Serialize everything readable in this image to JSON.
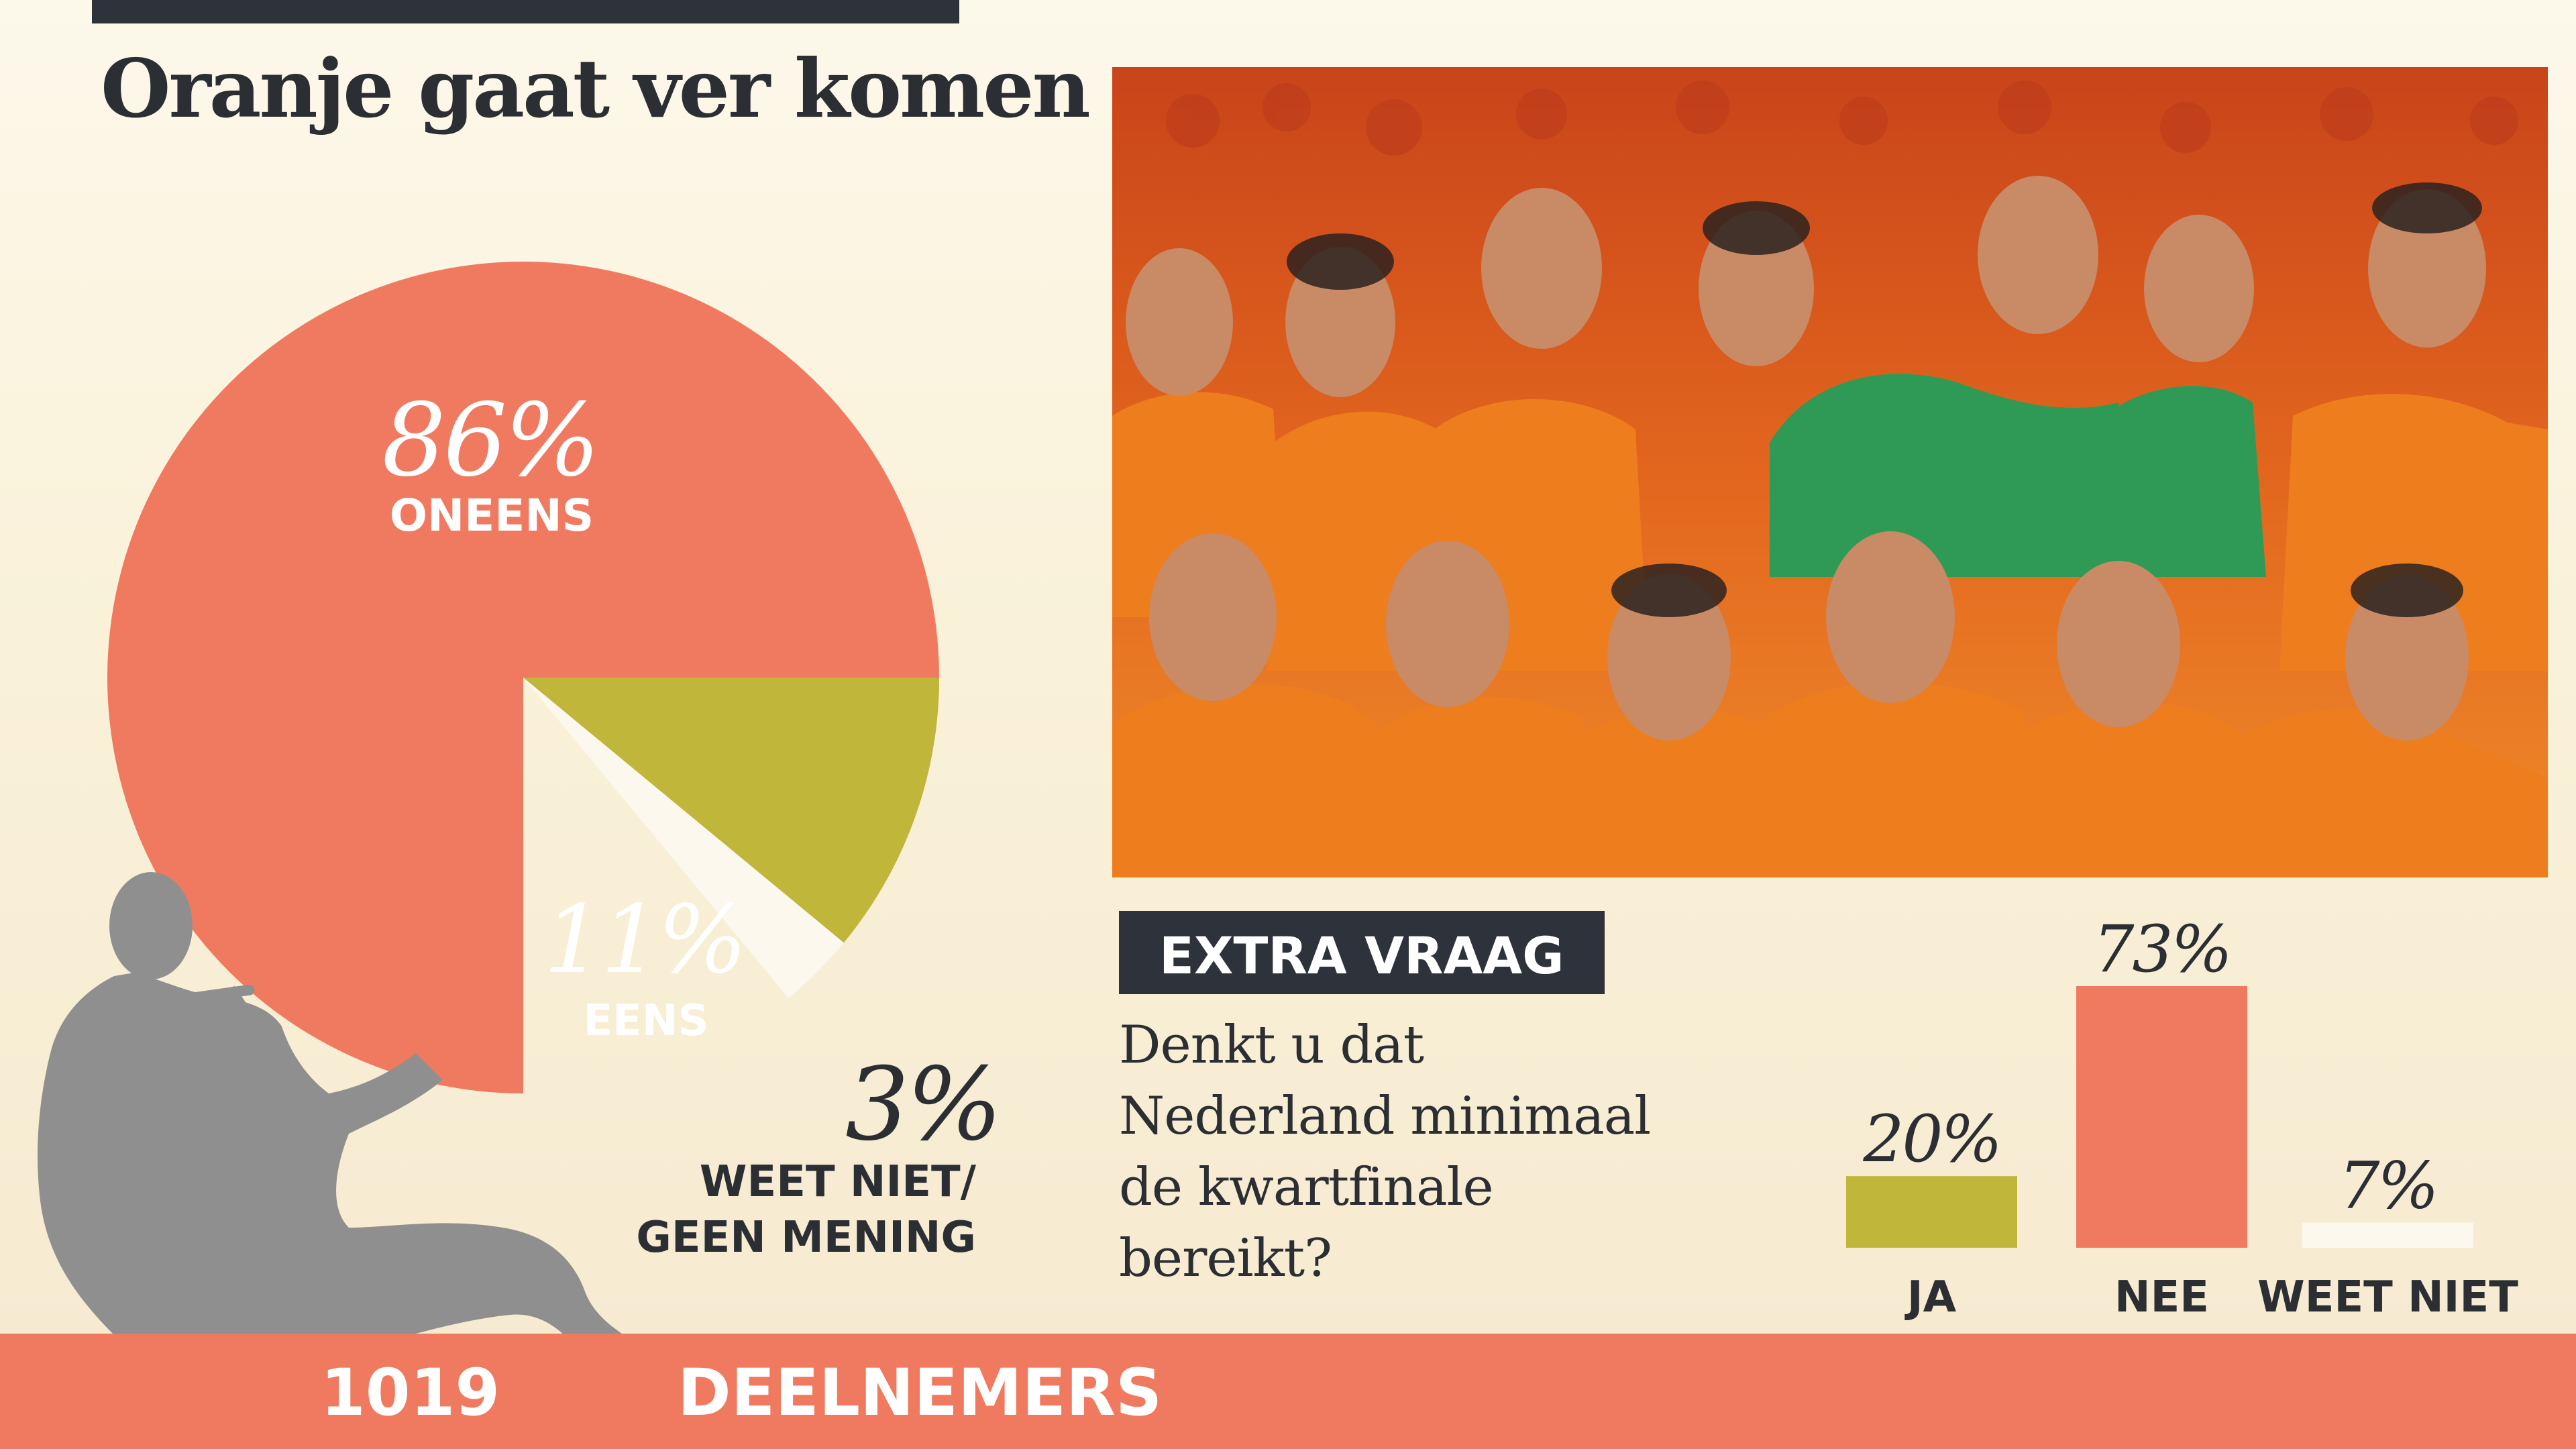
{
  "header": {
    "title": "Oranje gaat ver komen"
  },
  "chart_data": [
    {
      "type": "pie",
      "slices": [
        {
          "label": "ONEENS",
          "value": 86,
          "value_label": "86%",
          "color": "#f07a60"
        },
        {
          "label": "EENS",
          "value": 11,
          "value_label": "11%",
          "color": "#bfb63a"
        },
        {
          "label_lines": [
            "WEET NIET/",
            "GEEN MENING"
          ],
          "value": 3,
          "value_label": "3%",
          "color": "#fcf8ee"
        }
      ]
    },
    {
      "type": "bar",
      "question_title": "EXTRA VRAAG",
      "question_lines": [
        "Denkt u dat",
        "Nederland minimaal",
        "de kwartfinale",
        "bereikt?"
      ],
      "categories": [
        "JA",
        "NEE",
        "WEET NIET"
      ],
      "values": [
        20,
        73,
        7
      ],
      "value_labels": [
        "20%",
        "73%",
        "7%"
      ],
      "colors": [
        "#bfb63a",
        "#f07a60",
        "#fcf8ee"
      ]
    }
  ],
  "footer": {
    "count": "1019",
    "label": "DEELNEMERS"
  },
  "colors": {
    "accent": "#f07a60",
    "dark": "#2d323b",
    "olive": "#bfb63a",
    "silhouette": "#8f8f8f"
  },
  "photo": {
    "icon": "team-photo-icon"
  },
  "decoration": {
    "icon": "person-silhouette-icon"
  }
}
